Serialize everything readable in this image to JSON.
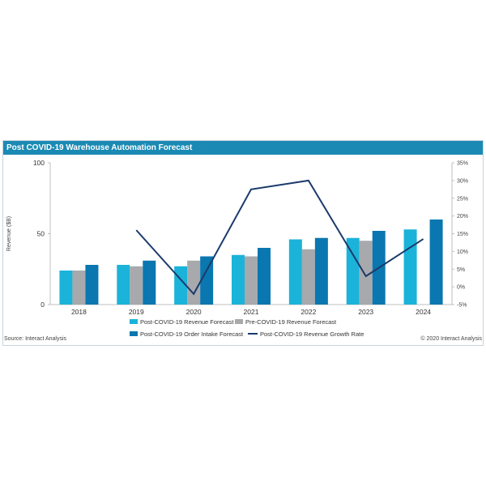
{
  "title": "Post COVID-19 Warehouse Automation Forecast",
  "source": "Source: Interact Analysis",
  "copyright": "© 2020 Interact Analysis",
  "colors": {
    "title_bg": "#1a8ab4",
    "post_revenue": "#1bb3d9",
    "pre_revenue": "#a7a9ac",
    "order_intake": "#0a77b0",
    "growth_line": "#1b3a6b"
  },
  "chart_data": {
    "type": "bar",
    "categories": [
      "2018",
      "2019",
      "2020",
      "2021",
      "2022",
      "2023",
      "2024"
    ],
    "ylabel": "Revenue ($B)",
    "ylim": [
      0,
      100
    ],
    "yticks": [
      0,
      50,
      100
    ],
    "y2lim": [
      -5,
      35
    ],
    "y2ticks": [
      "-5%",
      "0%",
      "5%",
      "10%",
      "15%",
      "20%",
      "25%",
      "30%",
      "35%"
    ],
    "y2tick_values": [
      -5,
      0,
      5,
      10,
      15,
      20,
      25,
      30,
      35
    ],
    "series": [
      {
        "name": "Post-COVID-19 Revenue Forecast",
        "values": [
          24,
          28,
          27,
          35,
          46,
          47,
          53
        ]
      },
      {
        "name": "Pre-COVID-19 Revenue Forecast",
        "values": [
          24,
          27,
          31,
          34,
          39,
          45,
          null
        ]
      },
      {
        "name": "Post-COVID-19 Order Intake Forecast",
        "values": [
          28,
          31,
          34,
          40,
          47,
          52,
          60
        ]
      },
      {
        "name": "Post-COVID-19 Revenue Growth Rate",
        "type": "line",
        "axis": "right",
        "values": [
          null,
          16,
          -2,
          27.5,
          30,
          3,
          13.5
        ]
      }
    ],
    "legend": "bottom"
  }
}
